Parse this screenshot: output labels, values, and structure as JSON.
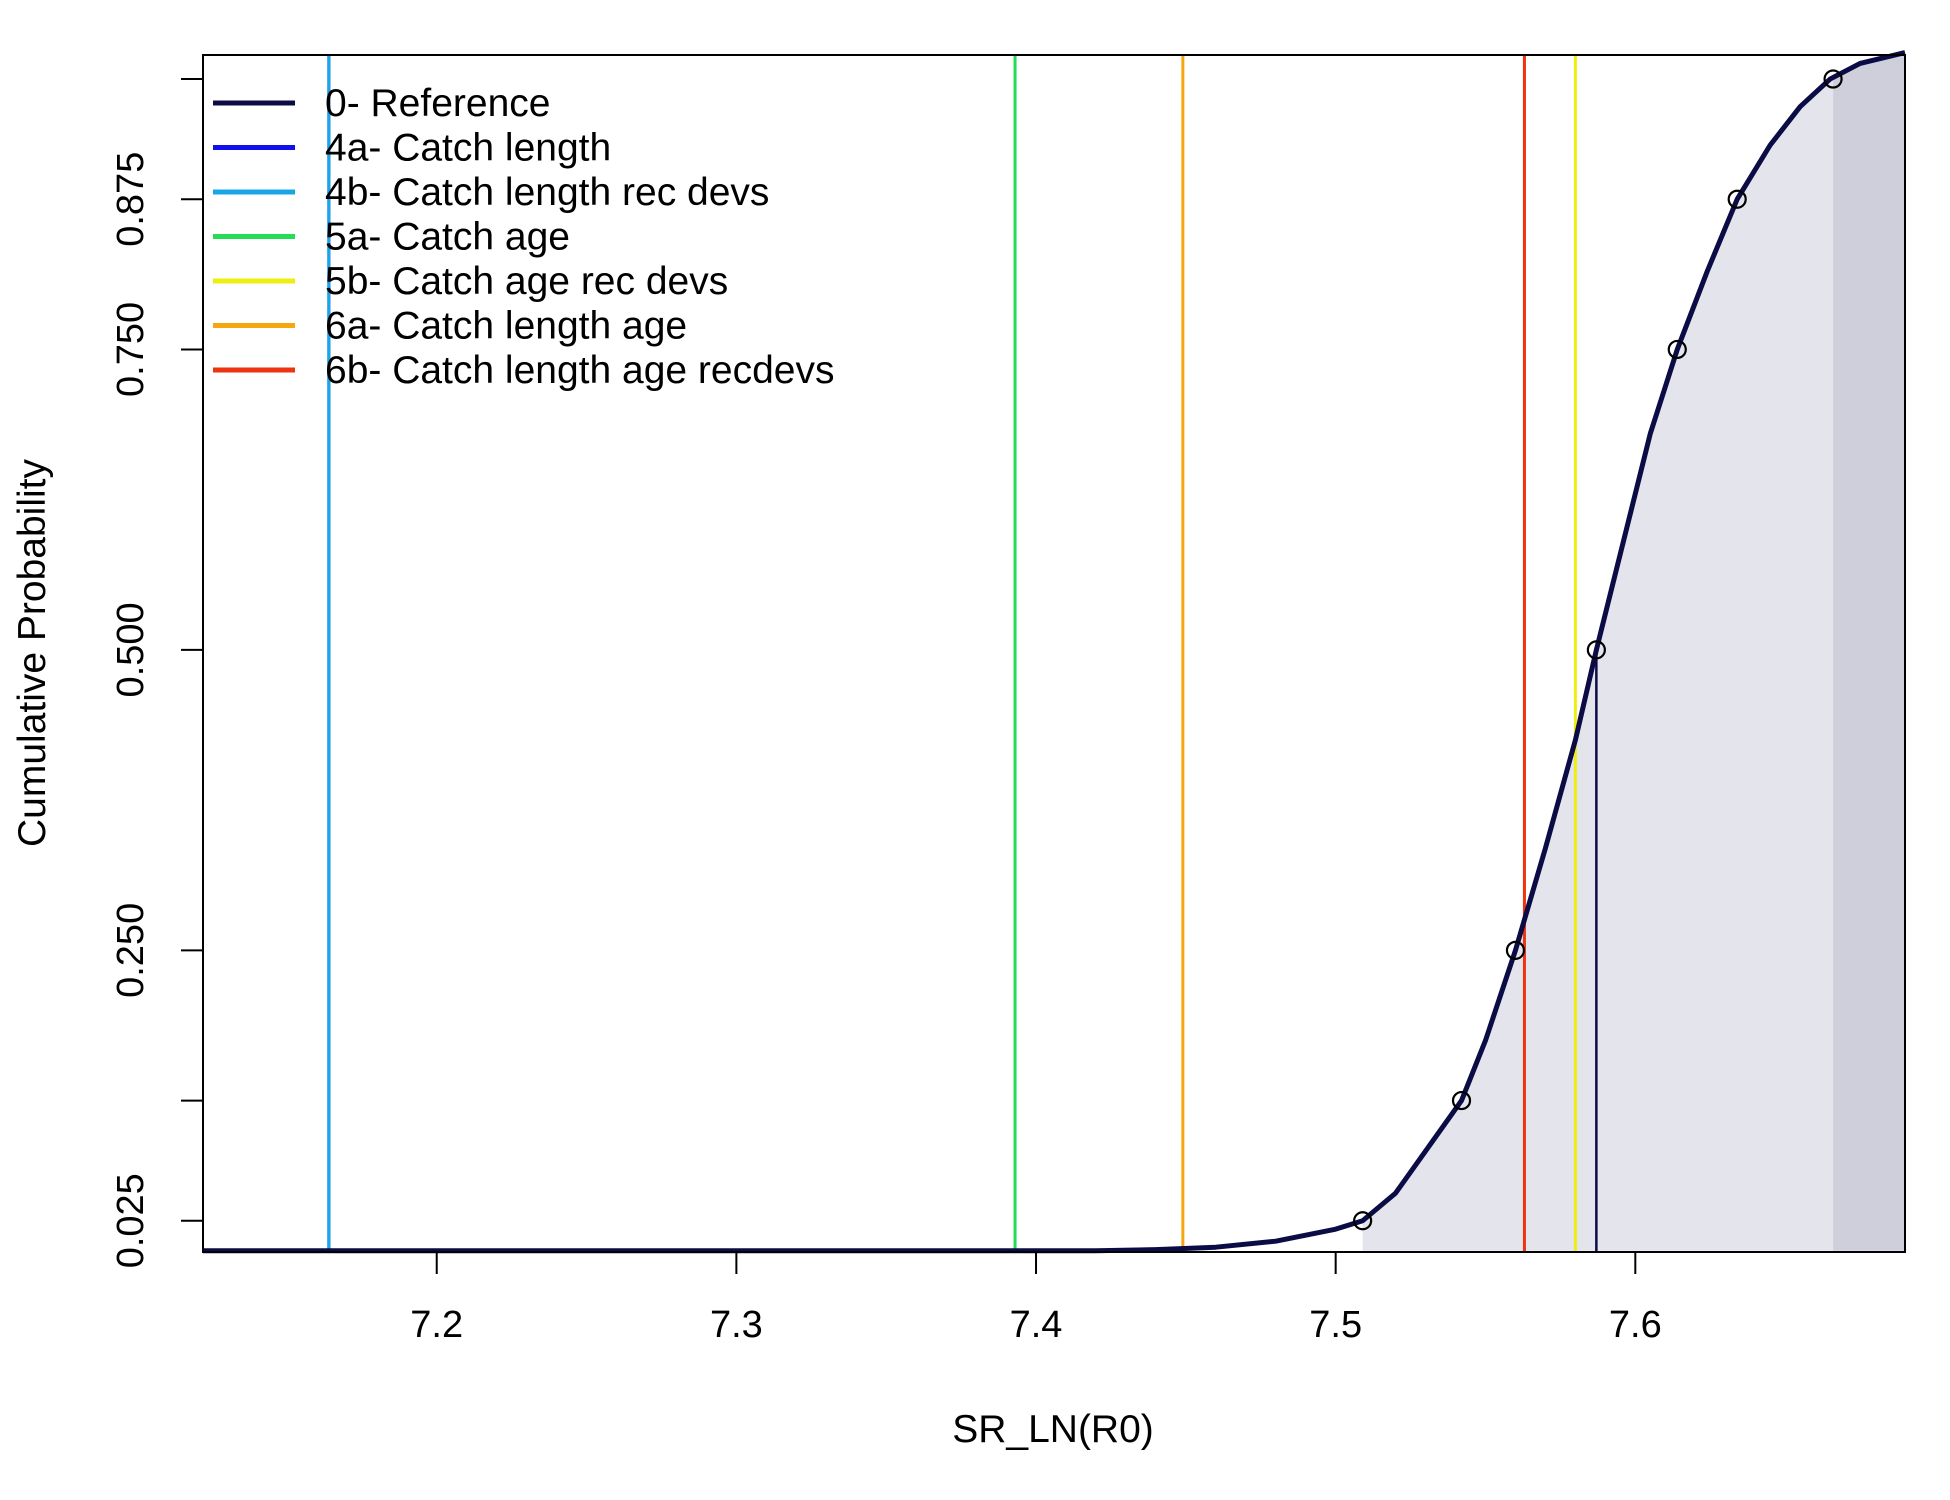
{
  "chart_data": {
    "type": "line",
    "xlabel": "SR_LN(R0)",
    "ylabel": "Cumulative Probability",
    "xlim": [
      7.122,
      7.69
    ],
    "ylim": [
      -0.001,
      0.995
    ],
    "x_ticks": [
      "7.2",
      "7.3",
      "7.4",
      "7.5",
      "7.6"
    ],
    "y_ticks": [
      "0.025",
      "0.250",
      "0.500",
      "0.750",
      "0.875"
    ],
    "y_ticks_unlabeled": [
      0.125,
      0.975
    ],
    "grid": false,
    "legend_position": "top-left",
    "series": [
      {
        "name": "0- Reference",
        "type": "cdf",
        "color": "#0b0b45",
        "x": [
          7.42,
          7.44,
          7.46,
          7.48,
          7.5,
          7.509,
          7.52,
          7.53,
          7.542,
          7.55,
          7.56,
          7.57,
          7.58,
          7.587,
          7.595,
          7.605,
          7.614,
          7.624,
          7.634,
          7.645,
          7.655,
          7.665,
          7.675,
          7.69
        ],
        "y": [
          0.0,
          0.001,
          0.003,
          0.008,
          0.018,
          0.025,
          0.048,
          0.083,
          0.125,
          0.175,
          0.25,
          0.335,
          0.425,
          0.5,
          0.58,
          0.68,
          0.75,
          0.815,
          0.875,
          0.92,
          0.952,
          0.975,
          0.988,
          0.997
        ],
        "quantile_points": [
          {
            "x": 7.509,
            "y": 0.025
          },
          {
            "x": 7.542,
            "y": 0.125
          },
          {
            "x": 7.56,
            "y": 0.25
          },
          {
            "x": 7.587,
            "y": 0.5
          },
          {
            "x": 7.614,
            "y": 0.75
          },
          {
            "x": 7.634,
            "y": 0.875
          },
          {
            "x": 7.666,
            "y": 0.975
          }
        ],
        "median": 7.587,
        "interval_95": [
          7.509,
          7.666
        ]
      },
      {
        "name": "4a- Catch length",
        "type": "vline",
        "color": "#1010ee",
        "x": 7.164
      },
      {
        "name": "4b- Catch length rec devs",
        "type": "vline",
        "color": "#17a6e8",
        "x": 7.164
      },
      {
        "name": "5a- Catch age",
        "type": "vline",
        "color": "#22dd55",
        "x": 7.393
      },
      {
        "name": "5b- Catch age rec devs",
        "type": "vline",
        "color": "#eeee11",
        "x": 7.58
      },
      {
        "name": "6a- Catch length age",
        "type": "vline",
        "color": "#f5a70f",
        "x": 7.449
      },
      {
        "name": "6b- Catch length age recdevs",
        "type": "vline",
        "color": "#ee3311",
        "x": 7.563
      }
    ],
    "colors": {
      "fill_inner": "#e4e4ec",
      "fill_tail": "#cfcfdb"
    }
  }
}
